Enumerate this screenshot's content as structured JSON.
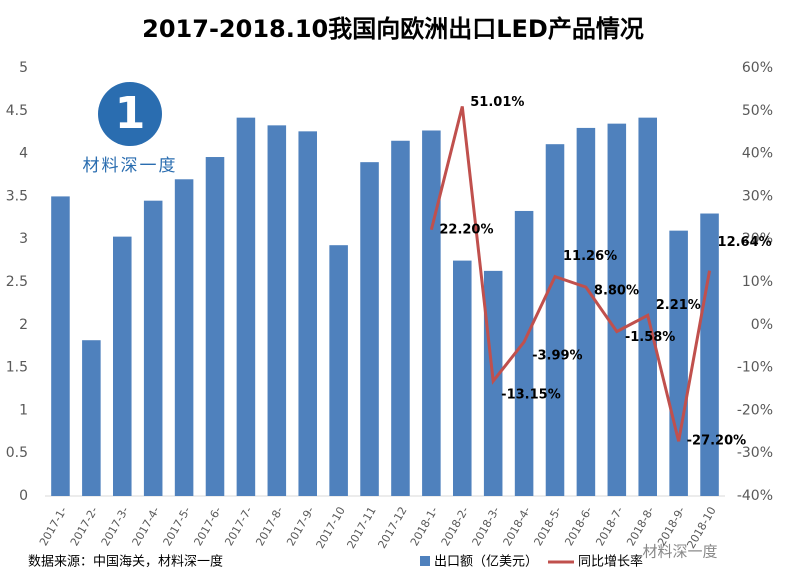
{
  "chart_data": {
    "type": "bar",
    "title": "2017-2018.10我国向欧洲出口LED产品情况",
    "source": "数据来源：中国海关，材料深一度",
    "logo_text": "材料深一度",
    "watermark": "材料深一度",
    "categories": [
      "2017-1-",
      "2017-2-",
      "2017-3-",
      "2017-4-",
      "2017-5-",
      "2017-6-",
      "2017-7-",
      "2017-8-",
      "2017-9-",
      "2017-10",
      "2017-11",
      "2017-12",
      "2018-1-",
      "2018-2-",
      "2018-3-",
      "2018-4-",
      "2018-5-",
      "2018-6-",
      "2018-7-",
      "2018-8-",
      "2018-9-",
      "2018-10"
    ],
    "series": [
      {
        "name": "出口额（亿美元）",
        "type": "bar",
        "color": "#4f81bd",
        "values": [
          3.5,
          1.82,
          3.03,
          3.45,
          3.7,
          3.96,
          4.42,
          4.33,
          4.26,
          2.93,
          3.9,
          4.15,
          4.27,
          2.75,
          2.63,
          3.33,
          4.11,
          4.3,
          4.35,
          4.42,
          3.1,
          3.3
        ]
      },
      {
        "name": "同比增长率",
        "type": "line",
        "axis": "y2",
        "color": "#c0504d",
        "values": [
          null,
          null,
          null,
          null,
          null,
          null,
          null,
          null,
          null,
          null,
          null,
          null,
          22.2,
          51.01,
          -13.15,
          -3.99,
          11.26,
          8.8,
          -1.58,
          2.21,
          -27.2,
          12.64
        ],
        "value_labels": [
          null,
          null,
          null,
          null,
          null,
          null,
          null,
          null,
          null,
          null,
          null,
          null,
          "22.20%",
          "51.01%",
          "-13.15%",
          "-3.99%",
          "11.26%",
          "8.80%",
          "-1.58%",
          "2.21%",
          "-27.20%",
          "12.64%"
        ]
      }
    ],
    "ylim": [
      0,
      5
    ],
    "yticks": [
      0,
      0.5,
      1,
      1.5,
      2,
      2.5,
      3,
      3.5,
      4,
      4.5,
      5
    ],
    "y2lim": [
      -40,
      60
    ],
    "y2ticks": [
      {
        "value": -40,
        "label": "-40%"
      },
      {
        "value": -30,
        "label": "-30%"
      },
      {
        "value": -20,
        "label": "-20%"
      },
      {
        "value": -10,
        "label": "-10%"
      },
      {
        "value": 0,
        "label": "0%"
      },
      {
        "value": 10,
        "label": "10%"
      },
      {
        "value": 20,
        "label": "20%"
      },
      {
        "value": 30,
        "label": "30%"
      },
      {
        "value": 40,
        "label": "40%"
      },
      {
        "value": 50,
        "label": "50%"
      },
      {
        "value": 60,
        "label": "60%"
      }
    ]
  }
}
